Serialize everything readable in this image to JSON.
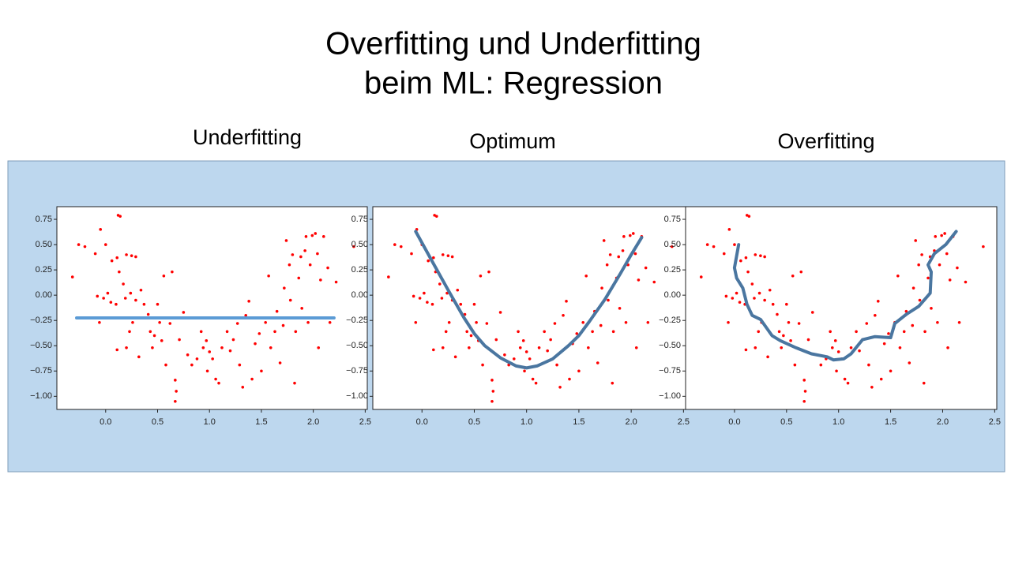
{
  "title": [
    "Overfitting und Underfitting",
    "beim ML: Regression"
  ],
  "chart_data": [
    {
      "type": "scatter",
      "title": "Underfitting",
      "xlim": [
        -0.47,
        2.52
      ],
      "ylim": [
        -1.13,
        0.875
      ],
      "xticks": [
        {
          "value": 0,
          "label": "0.0"
        },
        0.5,
        {
          "value": 1,
          "label": "1.0"
        },
        1.5,
        {
          "value": 2,
          "label": "2.0"
        },
        2.5
      ],
      "yticks": [
        0.75,
        {
          "value": 0.5,
          "label": "0.50"
        },
        0.25,
        {
          "value": 0,
          "label": "0.00"
        },
        {
          "value": -0.25,
          "label": "−0.25"
        },
        {
          "value": -0.5,
          "label": "−0.50"
        },
        {
          "value": -0.75,
          "label": "−0.75"
        },
        {
          "value": -1,
          "label": "−1.00"
        }
      ],
      "series": [
        {
          "type": "scatter",
          "color": "#ff0000",
          "x": [
            -0.32,
            -0.26,
            -0.2,
            -0.06,
            -0.1,
            -0.05,
            0.12,
            0.14,
            0.0,
            0.06,
            0.11,
            0.2,
            0.25,
            0.29,
            0.13,
            0.17,
            -0.08,
            -0.02,
            0.02,
            0.05,
            0.1,
            0.19,
            0.24,
            0.29,
            0.34,
            0.37,
            0.11,
            0.2,
            0.23,
            0.26,
            0.32,
            0.41,
            0.43,
            0.45,
            0.47,
            0.5,
            0.52,
            0.54,
            0.56,
            0.58,
            0.64,
            0.67,
            0.67,
            0.68,
            0.62,
            0.71,
            0.75,
            0.79,
            0.83,
            0.88,
            0.92,
            0.94,
            0.97,
            0.98,
            1.0,
            1.03,
            1.06,
            1.09,
            1.12,
            1.17,
            1.2,
            1.23,
            1.27,
            1.29,
            1.32,
            1.35,
            1.38,
            1.41,
            1.44,
            1.48,
            1.5,
            1.54,
            1.57,
            1.59,
            1.63,
            1.65,
            1.68,
            1.71,
            1.72,
            1.74,
            1.77,
            1.78,
            1.8,
            1.82,
            1.83,
            1.86,
            1.88,
            1.89,
            1.92,
            1.93,
            1.95,
            1.97,
            1.99,
            2.02,
            2.04,
            2.05,
            2.07,
            2.1,
            2.14,
            2.16,
            2.22,
            2.39
          ],
          "values": [
            0.18,
            0.5,
            0.48,
            -0.27,
            0.41,
            0.65,
            0.79,
            0.78,
            0.5,
            0.34,
            0.37,
            0.4,
            0.39,
            0.38,
            0.23,
            0.11,
            -0.01,
            -0.03,
            0.02,
            -0.07,
            -0.09,
            -0.03,
            0.02,
            -0.05,
            0.05,
            -0.09,
            -0.54,
            -0.52,
            -0.36,
            -0.27,
            -0.61,
            -0.19,
            -0.36,
            -0.52,
            -0.4,
            -0.09,
            -0.27,
            -0.45,
            0.19,
            -0.69,
            0.23,
            -0.84,
            -1.05,
            -0.95,
            -0.28,
            -0.44,
            -0.17,
            -0.59,
            -0.69,
            -0.63,
            -0.36,
            -0.52,
            -0.45,
            -0.75,
            -0.56,
            -0.63,
            -0.83,
            -0.87,
            -0.52,
            -0.36,
            -0.55,
            -0.44,
            -0.28,
            -0.69,
            -0.91,
            -0.2,
            -0.06,
            -0.83,
            -0.48,
            -0.38,
            -0.75,
            -0.27,
            0.19,
            -0.52,
            -0.36,
            -0.16,
            -0.67,
            -0.3,
            0.07,
            0.54,
            0.3,
            -0.05,
            0.4,
            -0.87,
            -0.36,
            0.17,
            0.38,
            -0.13,
            0.44,
            0.58,
            -0.27,
            0.3,
            0.59,
            0.61,
            0.41,
            -0.52,
            0.15,
            0.58,
            0.27,
            -0.27,
            0.13,
            0.48
          ]
        },
        {
          "type": "line",
          "color": "#5b9bd5",
          "x": [
            -0.28,
            2.2
          ],
          "values": [
            -0.225,
            -0.225
          ]
        }
      ]
    },
    {
      "type": "scatter",
      "title": "Optimum",
      "xlim": [
        -0.47,
        2.52
      ],
      "ylim": [
        -1.13,
        0.875
      ],
      "xticks": [
        {
          "value": 0,
          "label": "0.0"
        },
        0.5,
        {
          "value": 1,
          "label": "1.0"
        },
        1.5,
        {
          "value": 2,
          "label": "2.0"
        },
        2.5
      ],
      "yticks": [
        0.75,
        {
          "value": 0.5,
          "label": "0.50"
        },
        0.25,
        {
          "value": 0,
          "label": "0.00"
        },
        {
          "value": -0.25,
          "label": "−0.25"
        },
        {
          "value": -0.5,
          "label": "−0.50"
        },
        {
          "value": -0.75,
          "label": "−0.75"
        },
        {
          "value": -1,
          "label": "−1.00"
        }
      ],
      "series": [
        {
          "type": "scatter",
          "color": "#ff0000",
          "x": [
            -0.32,
            -0.26,
            -0.2,
            -0.06,
            -0.1,
            -0.05,
            0.12,
            0.14,
            0.0,
            0.06,
            0.11,
            0.2,
            0.25,
            0.29,
            0.13,
            0.17,
            -0.08,
            -0.02,
            0.02,
            0.05,
            0.1,
            0.19,
            0.24,
            0.29,
            0.34,
            0.37,
            0.11,
            0.2,
            0.23,
            0.26,
            0.32,
            0.41,
            0.43,
            0.45,
            0.47,
            0.5,
            0.52,
            0.54,
            0.56,
            0.58,
            0.64,
            0.67,
            0.67,
            0.68,
            0.62,
            0.71,
            0.75,
            0.79,
            0.83,
            0.88,
            0.92,
            0.94,
            0.97,
            0.98,
            1.0,
            1.03,
            1.06,
            1.09,
            1.12,
            1.17,
            1.2,
            1.23,
            1.27,
            1.29,
            1.32,
            1.35,
            1.38,
            1.41,
            1.44,
            1.48,
            1.5,
            1.54,
            1.57,
            1.59,
            1.63,
            1.65,
            1.68,
            1.71,
            1.72,
            1.74,
            1.77,
            1.78,
            1.8,
            1.82,
            1.83,
            1.86,
            1.88,
            1.89,
            1.92,
            1.93,
            1.95,
            1.97,
            1.99,
            2.02,
            2.04,
            2.05,
            2.07,
            2.1,
            2.14,
            2.16,
            2.22,
            2.39
          ],
          "values": [
            0.18,
            0.5,
            0.48,
            -0.27,
            0.41,
            0.65,
            0.79,
            0.78,
            0.5,
            0.34,
            0.37,
            0.4,
            0.39,
            0.38,
            0.23,
            0.11,
            -0.01,
            -0.03,
            0.02,
            -0.07,
            -0.09,
            -0.03,
            0.02,
            -0.05,
            0.05,
            -0.09,
            -0.54,
            -0.52,
            -0.36,
            -0.27,
            -0.61,
            -0.19,
            -0.36,
            -0.52,
            -0.4,
            -0.09,
            -0.27,
            -0.45,
            0.19,
            -0.69,
            0.23,
            -0.84,
            -1.05,
            -0.95,
            -0.28,
            -0.44,
            -0.17,
            -0.59,
            -0.69,
            -0.63,
            -0.36,
            -0.52,
            -0.45,
            -0.75,
            -0.56,
            -0.63,
            -0.83,
            -0.87,
            -0.52,
            -0.36,
            -0.55,
            -0.44,
            -0.28,
            -0.69,
            -0.91,
            -0.2,
            -0.06,
            -0.83,
            -0.48,
            -0.38,
            -0.75,
            -0.27,
            0.19,
            -0.52,
            -0.36,
            -0.16,
            -0.67,
            -0.3,
            0.07,
            0.54,
            0.3,
            -0.05,
            0.4,
            -0.87,
            -0.36,
            0.17,
            0.38,
            -0.13,
            0.44,
            0.58,
            -0.27,
            0.3,
            0.59,
            0.61,
            0.41,
            -0.52,
            0.15,
            0.58,
            0.27,
            -0.27,
            0.13,
            0.48
          ]
        },
        {
          "type": "line",
          "color": "#4a76a0",
          "x": [
            -0.06,
            0.1,
            0.25,
            0.4,
            0.5,
            0.6,
            0.75,
            0.9,
            1.0,
            1.1,
            1.25,
            1.4,
            1.5,
            1.6,
            1.75,
            1.9,
            2.0,
            2.1
          ],
          "values": [
            0.63,
            0.33,
            0.05,
            -0.22,
            -0.38,
            -0.5,
            -0.62,
            -0.7,
            -0.72,
            -0.7,
            -0.63,
            -0.5,
            -0.4,
            -0.26,
            -0.04,
            0.22,
            0.4,
            0.57
          ]
        }
      ]
    },
    {
      "type": "scatter",
      "title": "Overfitting",
      "xlim": [
        -0.47,
        2.52
      ],
      "ylim": [
        -1.13,
        0.875
      ],
      "xticks": [
        {
          "value": 0,
          "label": "0.0"
        },
        0.5,
        {
          "value": 1,
          "label": "1.0"
        },
        1.5,
        {
          "value": 2,
          "label": "2.0"
        },
        2.5
      ],
      "yticks": [
        0.75,
        {
          "value": 0.5,
          "label": "0.50"
        },
        0.25,
        {
          "value": 0,
          "label": "0.00"
        },
        {
          "value": -0.25,
          "label": "−0.25"
        },
        {
          "value": -0.5,
          "label": "−0.50"
        },
        {
          "value": -0.75,
          "label": "−0.75"
        },
        {
          "value": -1,
          "label": "−1.00"
        }
      ],
      "series": [
        {
          "type": "scatter",
          "color": "#ff0000",
          "x": [
            -0.32,
            -0.26,
            -0.2,
            -0.06,
            -0.1,
            -0.05,
            0.12,
            0.14,
            0.0,
            0.06,
            0.11,
            0.2,
            0.25,
            0.29,
            0.13,
            0.17,
            -0.08,
            -0.02,
            0.02,
            0.05,
            0.1,
            0.19,
            0.24,
            0.29,
            0.34,
            0.37,
            0.11,
            0.2,
            0.23,
            0.26,
            0.32,
            0.41,
            0.43,
            0.45,
            0.47,
            0.5,
            0.52,
            0.54,
            0.56,
            0.58,
            0.64,
            0.67,
            0.67,
            0.68,
            0.62,
            0.71,
            0.75,
            0.79,
            0.83,
            0.88,
            0.92,
            0.94,
            0.97,
            0.98,
            1.0,
            1.03,
            1.06,
            1.09,
            1.12,
            1.17,
            1.2,
            1.23,
            1.27,
            1.29,
            1.32,
            1.35,
            1.38,
            1.41,
            1.44,
            1.48,
            1.5,
            1.54,
            1.57,
            1.59,
            1.63,
            1.65,
            1.68,
            1.71,
            1.72,
            1.74,
            1.77,
            1.78,
            1.8,
            1.82,
            1.83,
            1.86,
            1.88,
            1.89,
            1.92,
            1.93,
            1.95,
            1.97,
            1.99,
            2.02,
            2.04,
            2.05,
            2.07,
            2.1,
            2.14,
            2.16,
            2.22,
            2.39
          ],
          "values": [
            0.18,
            0.5,
            0.48,
            -0.27,
            0.41,
            0.65,
            0.79,
            0.78,
            0.5,
            0.34,
            0.37,
            0.4,
            0.39,
            0.38,
            0.23,
            0.11,
            -0.01,
            -0.03,
            0.02,
            -0.07,
            -0.09,
            -0.03,
            0.02,
            -0.05,
            0.05,
            -0.09,
            -0.54,
            -0.52,
            -0.36,
            -0.27,
            -0.61,
            -0.19,
            -0.36,
            -0.52,
            -0.4,
            -0.09,
            -0.27,
            -0.45,
            0.19,
            -0.69,
            0.23,
            -0.84,
            -1.05,
            -0.95,
            -0.28,
            -0.44,
            -0.17,
            -0.59,
            -0.69,
            -0.63,
            -0.36,
            -0.52,
            -0.45,
            -0.75,
            -0.56,
            -0.63,
            -0.83,
            -0.87,
            -0.52,
            -0.36,
            -0.55,
            -0.44,
            -0.28,
            -0.69,
            -0.91,
            -0.2,
            -0.06,
            -0.83,
            -0.48,
            -0.38,
            -0.75,
            -0.27,
            0.19,
            -0.52,
            -0.36,
            -0.16,
            -0.67,
            -0.3,
            0.07,
            0.54,
            0.3,
            -0.05,
            0.4,
            -0.87,
            -0.36,
            0.17,
            0.38,
            -0.13,
            0.44,
            0.58,
            -0.27,
            0.3,
            0.59,
            0.61,
            0.41,
            -0.52,
            0.15,
            0.58,
            0.27,
            -0.27,
            0.13,
            0.48
          ]
        },
        {
          "type": "line",
          "color": "#4a76a0",
          "x": [
            0.04,
            0.0,
            0.02,
            0.08,
            0.12,
            0.17,
            0.25,
            0.36,
            0.44,
            0.59,
            0.74,
            0.89,
            0.95,
            1.05,
            1.12,
            1.23,
            1.35,
            1.5,
            1.54,
            1.65,
            1.77,
            1.88,
            1.89,
            1.86,
            1.92,
            2.03,
            2.13
          ],
          "values": [
            0.5,
            0.27,
            0.17,
            0.07,
            -0.09,
            -0.2,
            -0.24,
            -0.4,
            -0.45,
            -0.52,
            -0.58,
            -0.61,
            -0.64,
            -0.63,
            -0.58,
            -0.44,
            -0.41,
            -0.42,
            -0.28,
            -0.19,
            -0.11,
            0.02,
            0.23,
            0.3,
            0.41,
            0.5,
            0.63
          ]
        }
      ]
    }
  ]
}
